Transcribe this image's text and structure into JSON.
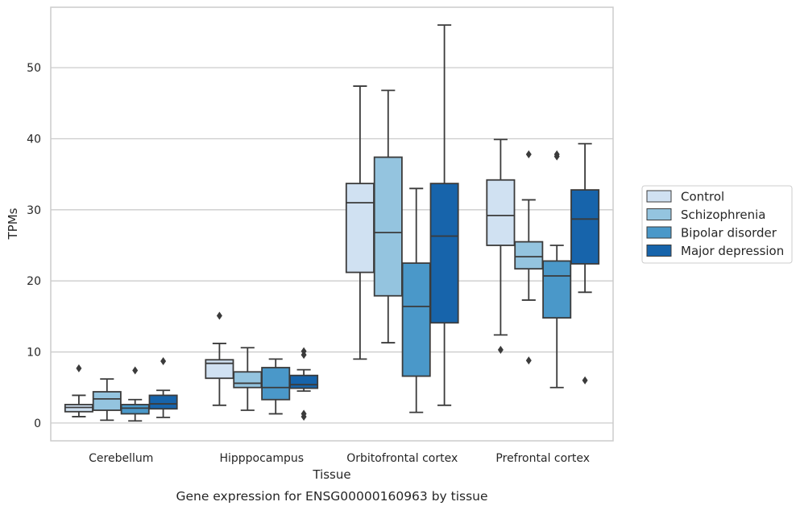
{
  "chart_data": {
    "type": "box",
    "title": "",
    "caption": "Gene expression for ENSG00000160963 by tissue",
    "xlabel": "Tissue",
    "ylabel": "TPMs",
    "ylim": [
      -2.5,
      58.5
    ],
    "yticks": [
      0,
      10,
      20,
      30,
      40,
      50
    ],
    "grid": "horizontal",
    "legend_position": "right",
    "categories": [
      "Cerebellum",
      "Hipppocampus",
      "Orbitofrontal cortex",
      "Prefrontal cortex"
    ],
    "series": [
      {
        "name": "Control",
        "color": "#d0e1f2",
        "boxes": [
          {
            "whisker_low": 0.9,
            "q1": 1.6,
            "median": 2.2,
            "q3": 2.6,
            "whisker_high": 3.9,
            "outliers": [
              7.7
            ]
          },
          {
            "whisker_low": 2.5,
            "q1": 6.3,
            "median": 8.4,
            "q3": 8.9,
            "whisker_high": 11.2,
            "outliers": [
              15.1
            ]
          },
          {
            "whisker_low": 9.0,
            "q1": 21.2,
            "median": 31.0,
            "q3": 33.7,
            "whisker_high": 47.4,
            "outliers": []
          },
          {
            "whisker_low": 12.4,
            "q1": 25.0,
            "median": 29.2,
            "q3": 34.2,
            "whisker_high": 39.9,
            "outliers": [
              10.3
            ]
          }
        ]
      },
      {
        "name": "Schizophrenia",
        "color": "#94c4df",
        "boxes": [
          {
            "whisker_low": 0.4,
            "q1": 1.8,
            "median": 3.4,
            "q3": 4.4,
            "whisker_high": 6.2,
            "outliers": []
          },
          {
            "whisker_low": 1.8,
            "q1": 5.0,
            "median": 5.6,
            "q3": 7.2,
            "whisker_high": 10.6,
            "outliers": []
          },
          {
            "whisker_low": 11.3,
            "q1": 17.9,
            "median": 26.8,
            "q3": 37.4,
            "whisker_high": 46.8,
            "outliers": []
          },
          {
            "whisker_low": 17.3,
            "q1": 21.7,
            "median": 23.4,
            "q3": 25.5,
            "whisker_high": 31.4,
            "outliers": [
              37.8,
              8.8
            ]
          }
        ]
      },
      {
        "name": "Bipolar disorder",
        "color": "#4a98c9",
        "boxes": [
          {
            "whisker_low": 0.3,
            "q1": 1.3,
            "median": 2.1,
            "q3": 2.6,
            "whisker_high": 3.3,
            "outliers": [
              7.4
            ]
          },
          {
            "whisker_low": 1.3,
            "q1": 3.3,
            "median": 5.0,
            "q3": 7.8,
            "whisker_high": 9.0,
            "outliers": []
          },
          {
            "whisker_low": 1.5,
            "q1": 6.6,
            "median": 16.4,
            "q3": 22.5,
            "whisker_high": 33.0,
            "outliers": []
          },
          {
            "whisker_low": 5.0,
            "q1": 14.8,
            "median": 20.7,
            "q3": 22.8,
            "whisker_high": 25.0,
            "outliers": [
              37.5,
              37.8
            ]
          }
        ]
      },
      {
        "name": "Major depression",
        "color": "#1764ab",
        "boxes": [
          {
            "whisker_low": 0.8,
            "q1": 2.0,
            "median": 2.7,
            "q3": 3.9,
            "whisker_high": 4.6,
            "outliers": [
              8.7
            ]
          },
          {
            "whisker_low": 4.5,
            "q1": 4.9,
            "median": 5.4,
            "q3": 6.7,
            "whisker_high": 7.5,
            "outliers": [
              10.1,
              9.6,
              1.3,
              0.9
            ]
          },
          {
            "whisker_low": 2.5,
            "q1": 14.1,
            "median": 26.3,
            "q3": 33.7,
            "whisker_high": 56.0,
            "outliers": []
          },
          {
            "whisker_low": 18.4,
            "q1": 22.4,
            "median": 28.7,
            "q3": 32.8,
            "whisker_high": 39.3,
            "outliers": [
              6.0
            ]
          }
        ]
      }
    ]
  }
}
